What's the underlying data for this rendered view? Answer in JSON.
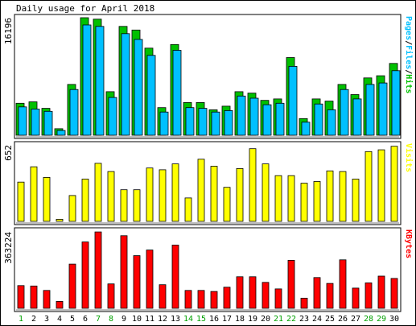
{
  "chart_data": {
    "type": "bar",
    "title": "Daily usage for April 2018",
    "categories": [
      "1",
      "2",
      "3",
      "4",
      "5",
      "6",
      "7",
      "8",
      "9",
      "10",
      "11",
      "12",
      "13",
      "14",
      "15",
      "16",
      "17",
      "18",
      "19",
      "20",
      "21",
      "22",
      "23",
      "24",
      "25",
      "26",
      "27",
      "28",
      "29",
      "30"
    ],
    "weekend_days": [
      "1",
      "7",
      "8",
      "14",
      "15",
      "21",
      "22",
      "28",
      "29"
    ],
    "panels": [
      {
        "id": "hits",
        "ymax_label": "16196",
        "ymax": 16196,
        "legend": {
          "hits": "Hits",
          "files": "Files",
          "pages": "Pages",
          "sep": "/"
        },
        "series": [
          {
            "name": "Hits",
            "color": "#00c000",
            "values": [
              4400,
              4600,
              3700,
              900,
              7000,
              16200,
              16000,
              6000,
              15000,
              14500,
              12000,
              3800,
              12500,
              4500,
              4500,
              3500,
              4000,
              6000,
              5800,
              4800,
              5000,
              10700,
              2300,
              5000,
              4700,
              7000,
              5600,
              7900,
              8200,
              9900
            ]
          },
          {
            "name": "Files",
            "color": "#00c0ff",
            "values": [
              3900,
              3600,
              3300,
              650,
              6300,
              15200,
              15000,
              5200,
              14000,
              13200,
              11000,
              3200,
              11700,
              3800,
              3700,
              3200,
              3400,
              5400,
              5100,
              4200,
              4400,
              9500,
              1800,
              4300,
              3500,
              6300,
              5000,
              7000,
              7200,
              8900
            ]
          }
        ]
      },
      {
        "id": "visits",
        "ymax_label": "652",
        "ymax": 652,
        "legend": {
          "visits": "Visits"
        },
        "series": [
          {
            "name": "Visits",
            "color": "#ffff00",
            "values": [
              335,
              465,
              375,
              18,
              220,
              360,
              495,
              425,
              270,
              270,
              455,
              440,
              490,
              200,
              530,
              470,
              290,
              450,
              620,
              490,
              390,
              390,
              325,
              340,
              430,
              425,
              360,
              595,
              610,
              640
            ]
          }
        ]
      },
      {
        "id": "kbytes",
        "ymax_label": "363224",
        "ymax": 363224,
        "legend": {
          "kbytes": "KBytes"
        },
        "series": [
          {
            "name": "KBytes",
            "color": "#ff0000",
            "values": [
              108000,
              106000,
              85000,
              33000,
              210000,
              315000,
              363000,
              116000,
              345000,
              250000,
              277000,
              112000,
              300000,
              85000,
              85000,
              80000,
              100000,
              150000,
              150000,
              123000,
              92000,
              228000,
              48000,
              146000,
              118000,
              230000,
              96000,
              121000,
              153000,
              142000
            ]
          }
        ]
      }
    ]
  }
}
